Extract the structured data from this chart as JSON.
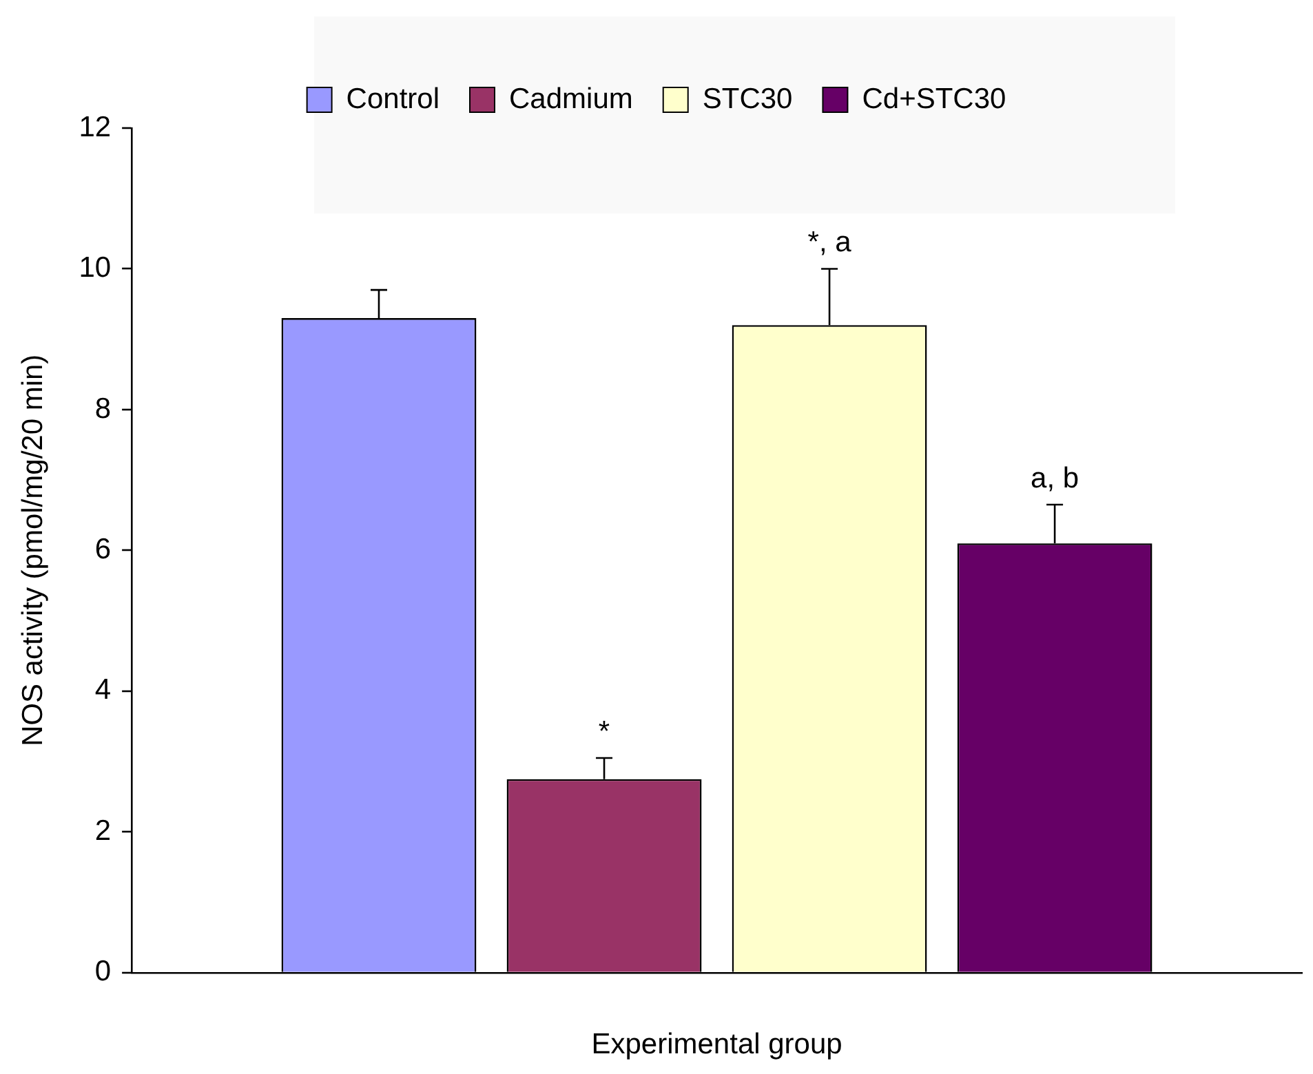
{
  "chart_data": {
    "type": "bar",
    "xlabel": "Experimental group",
    "ylabel": "NOS activity (pmol/mg/20 min)",
    "categories": [
      null
    ],
    "series": [
      {
        "name": "Control",
        "color": "#9999ff",
        "values": [
          9.3
        ],
        "errors": [
          0.4
        ]
      },
      {
        "name": "Cadmium",
        "color": "#993366",
        "values": [
          2.75
        ],
        "errors": [
          0.3
        ],
        "value_labels": [
          "*"
        ]
      },
      {
        "name": "STC30",
        "color": "#ffffcc",
        "values": [
          9.2
        ],
        "errors": [
          0.8
        ],
        "value_labels": [
          "*, a"
        ]
      },
      {
        "name": "Cd+STC30",
        "color": "#660066",
        "values": [
          6.1
        ],
        "errors": [
          0.55
        ],
        "value_labels": [
          "a, b"
        ]
      }
    ],
    "ylim": [
      0,
      12
    ],
    "yticks": [
      0,
      2,
      4,
      6,
      8,
      10,
      12
    ],
    "grid": false,
    "legend": "top"
  }
}
